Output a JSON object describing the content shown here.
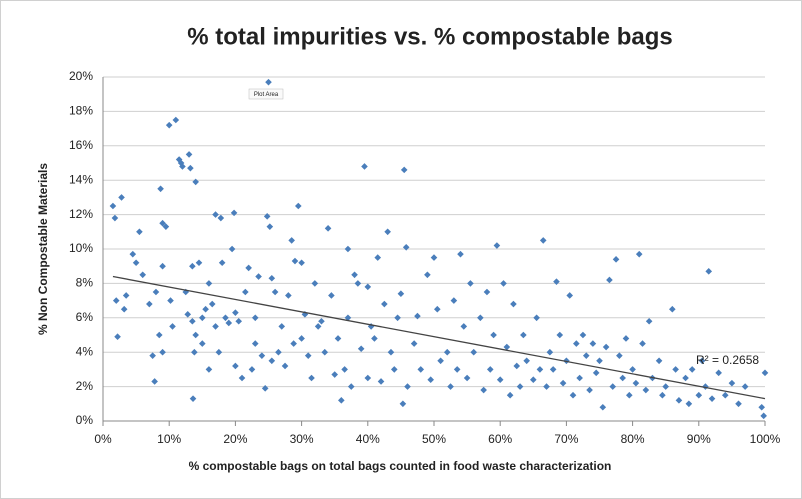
{
  "chart_data": {
    "type": "scatter",
    "title": "% total impurities vs. % compostable bags",
    "x_label": "% compostable bags on total bags counted in food waste characterization",
    "y_label": "% Non Compostable Materials",
    "annotation": "R² = 0.2658",
    "tooltip": "Plot Area",
    "color": "#4a7ebb",
    "grid": true,
    "xlim": [
      0,
      100
    ],
    "ylim": [
      0,
      20
    ],
    "xticks": [
      {
        "value": 0,
        "label": "0%"
      },
      {
        "value": 10,
        "label": "10%"
      },
      {
        "value": 20,
        "label": "20%"
      },
      {
        "value": 30,
        "label": "30%"
      },
      {
        "value": 40,
        "label": "40%"
      },
      {
        "value": 50,
        "label": "50%"
      },
      {
        "value": 60,
        "label": "60%"
      },
      {
        "value": 70,
        "label": "70%"
      },
      {
        "value": 80,
        "label": "80%"
      },
      {
        "value": 90,
        "label": "90%"
      },
      {
        "value": 100,
        "label": "100%"
      }
    ],
    "yticks": [
      {
        "value": 0,
        "label": "0%"
      },
      {
        "value": 2,
        "label": "2%"
      },
      {
        "value": 4,
        "label": "4%"
      },
      {
        "value": 6,
        "label": "6%"
      },
      {
        "value": 8,
        "label": "8%"
      },
      {
        "value": 10,
        "label": "10%"
      },
      {
        "value": 12,
        "label": "12%"
      },
      {
        "value": 14,
        "label": "14%"
      },
      {
        "value": 16,
        "label": "16%"
      },
      {
        "value": 18,
        "label": "18%"
      },
      {
        "value": 20,
        "label": "20%"
      }
    ],
    "trendline": {
      "x": [
        1.5,
        100
      ],
      "y": [
        8.4,
        1.3
      ]
    },
    "x": [
      1.5,
      1.8,
      2,
      2.2,
      2.8,
      3.5,
      3.2,
      4.5,
      5,
      5.5,
      6,
      7,
      7.5,
      7.8,
      8,
      8.5,
      8.7,
      9,
      9,
      9,
      9.5,
      10,
      10.2,
      10.5,
      11,
      11.5,
      11.8,
      12,
      12.5,
      12.8,
      13,
      13.2,
      13.5,
      13.5,
      13.6,
      13.8,
      14,
      14,
      14.5,
      15,
      15,
      15.5,
      16,
      16,
      16.5,
      17,
      17,
      17.5,
      17.8,
      18,
      18.5,
      19,
      19.5,
      19.8,
      20,
      20,
      20.5,
      21,
      21.5,
      22,
      22.5,
      23,
      23,
      23.5,
      24,
      24.5,
      24.8,
      25,
      25.2,
      25.5,
      25.5,
      26,
      26.5,
      27,
      27.5,
      28,
      28.5,
      28.8,
      29,
      29.5,
      30,
      30,
      30.5,
      31,
      31.5,
      32,
      32.5,
      33,
      33.5,
      34,
      34.5,
      35,
      35.5,
      36,
      36.5,
      37,
      37,
      37.5,
      38,
      38.5,
      39,
      39.5,
      40,
      40,
      40.5,
      41,
      41.5,
      42,
      42.5,
      43,
      43.5,
      44,
      44.5,
      45,
      45.3,
      45.5,
      45.8,
      46,
      47,
      47.5,
      48,
      49,
      49.5,
      50,
      50.5,
      51,
      52,
      52.5,
      53,
      53.5,
      54,
      54.5,
      55,
      55.5,
      56,
      57,
      57.5,
      58,
      58.5,
      59,
      59.5,
      60,
      60.5,
      61,
      61.5,
      62,
      62.5,
      63,
      63.5,
      64,
      65,
      65.5,
      66,
      66.5,
      67,
      67.5,
      68,
      68.5,
      69,
      69.5,
      70,
      70.5,
      71,
      71.5,
      72,
      72.5,
      73,
      73.5,
      74,
      74.5,
      75,
      75.5,
      76,
      76.5,
      77,
      77.5,
      78,
      78.5,
      79,
      79.5,
      80,
      80.5,
      81,
      81.5,
      82,
      82.5,
      83,
      84,
      84.5,
      85,
      86,
      86.5,
      87,
      88,
      88.5,
      89,
      90,
      90.5,
      91,
      91.5,
      92,
      93,
      94,
      95,
      96,
      97,
      99.5,
      99.8,
      100
    ],
    "y": [
      12.5,
      11.8,
      7,
      4.9,
      13,
      7.3,
      6.5,
      9.7,
      9.2,
      11,
      8.5,
      6.8,
      3.8,
      2.3,
      7.5,
      5,
      13.5,
      11.5,
      9,
      4,
      11.3,
      17.2,
      7,
      5.5,
      17.5,
      15.2,
      15,
      14.8,
      7.5,
      6.2,
      15.5,
      14.7,
      9,
      5.8,
      1.3,
      4,
      13.9,
      5,
      9.2,
      6,
      4.5,
      6.5,
      8,
      3,
      6.8,
      12,
      5.5,
      4,
      11.8,
      9.2,
      6,
      5.7,
      10,
      12.1,
      6.3,
      3.2,
      5.8,
      2.5,
      7.5,
      8.9,
      3,
      4.5,
      6,
      8.4,
      3.8,
      1.9,
      11.9,
      19.7,
      11.3,
      8.3,
      3.5,
      7.5,
      4,
      5.5,
      3.2,
      7.3,
      10.5,
      4.5,
      9.3,
      12.5,
      4.8,
      9.2,
      6.2,
      3.8,
      2.5,
      8,
      5.5,
      5.8,
      4,
      11.2,
      7.3,
      2.7,
      4.8,
      1.2,
      3,
      10,
      6,
      2,
      8.5,
      8,
      4.2,
      14.8,
      2.5,
      7.8,
      5.5,
      4.8,
      9.5,
      2.3,
      6.8,
      11,
      4,
      3,
      6,
      7.4,
      1,
      14.6,
      10.1,
      2,
      4.5,
      6.1,
      3,
      8.5,
      2.4,
      9.5,
      6.5,
      3.5,
      4,
      2,
      7,
      3,
      9.7,
      5.5,
      2.5,
      8,
      4,
      6,
      1.8,
      7.5,
      3,
      5,
      10.2,
      2.4,
      8,
      4.3,
      1.5,
      6.8,
      3.2,
      2,
      5,
      3.5,
      2.4,
      6,
      3,
      10.5,
      2,
      4,
      3,
      8.1,
      5,
      2.2,
      3.5,
      7.3,
      1.5,
      4.5,
      2.5,
      5,
      3.8,
      1.8,
      4.5,
      2.8,
      3.5,
      0.8,
      4.3,
      8.2,
      2,
      9.4,
      3.8,
      2.5,
      4.8,
      1.5,
      3,
      2.2,
      9.7,
      4.5,
      1.8,
      5.8,
      2.5,
      3.5,
      1.5,
      2,
      6.5,
      3,
      1.2,
      2.5,
      1,
      3,
      1.5,
      3.5,
      2,
      8.7,
      1.3,
      2.8,
      1.5,
      2.2,
      1,
      2,
      0.8,
      0.3,
      2.8
    ]
  }
}
